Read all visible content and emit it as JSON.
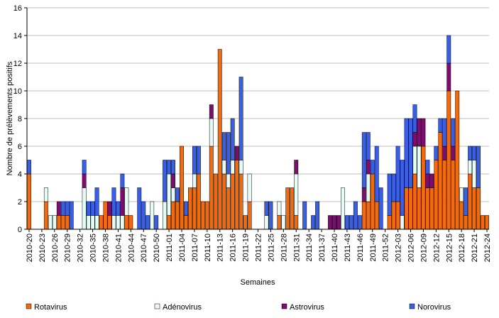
{
  "chart_data": {
    "type": "bar",
    "stacked": true,
    "y_label": "Nombre de prélèvements positifs",
    "x_label": "Semaines",
    "categories": [
      "2010-20",
      null,
      null,
      "2010-23",
      null,
      null,
      "2010-26",
      null,
      null,
      "2010-29",
      null,
      null,
      "2010-32",
      null,
      null,
      "2010-35",
      null,
      null,
      "2010-38",
      null,
      null,
      "2010-41",
      null,
      null,
      "2010-44",
      null,
      null,
      "2010-47",
      null,
      null,
      "2010-50",
      null,
      null,
      "2011-01",
      null,
      null,
      "2011-04",
      null,
      null,
      "2011-07",
      null,
      null,
      "2011-10",
      null,
      null,
      "2011-13",
      null,
      null,
      "2011-16",
      null,
      null,
      "2011-19",
      null,
      null,
      "2011-22",
      null,
      null,
      "2011-25",
      null,
      null,
      "2011-28",
      null,
      null,
      "2011-31",
      null,
      null,
      "2011-34",
      null,
      null,
      "2011-37",
      null,
      null,
      "2011-40",
      null,
      null,
      "2011-43",
      null,
      null,
      "2011-46",
      null,
      null,
      "2011-49",
      null,
      null,
      "2011-52",
      null,
      null,
      "2012-03",
      null,
      null,
      "2012-06",
      null,
      null,
      "2012-09",
      null,
      null,
      "2012-12",
      null,
      null,
      "2012-15",
      null,
      null,
      "2012-18",
      null,
      null,
      "2012-21",
      null,
      null,
      "2012-24"
    ],
    "series": [
      {
        "name": "Rotavirus",
        "color": "#f26a10",
        "values": [
          4,
          0,
          0,
          0,
          2,
          0,
          0,
          1,
          1,
          1,
          0,
          0,
          0,
          0,
          0,
          0,
          0,
          1,
          2,
          1,
          0,
          0,
          0,
          1,
          1,
          0,
          0,
          0,
          0,
          0,
          0,
          0,
          0,
          1,
          2,
          2,
          6,
          1,
          3,
          3,
          4,
          2,
          2,
          6,
          4,
          13,
          4,
          3,
          4,
          5,
          4,
          1,
          2,
          0,
          0,
          0,
          0,
          0,
          0,
          1,
          0,
          3,
          3,
          1,
          0,
          0,
          0,
          0,
          0,
          0,
          0,
          0,
          0,
          0,
          0,
          0,
          0,
          0,
          0,
          2,
          2,
          4,
          2,
          0,
          0,
          1,
          2,
          2,
          0,
          3,
          3,
          4,
          3,
          6,
          3,
          3,
          5,
          7,
          5,
          10,
          5,
          10,
          2,
          1,
          4,
          3,
          3,
          1,
          1
        ]
      },
      {
        "name": "Adénovirus",
        "color": "#e6fbf5",
        "values": [
          0,
          0,
          0,
          0,
          1,
          1,
          1,
          0,
          0,
          0,
          0,
          0,
          0,
          3,
          1,
          1,
          1,
          0,
          0,
          0,
          1,
          1,
          1,
          2,
          0,
          0,
          0,
          0,
          0,
          2,
          0,
          0,
          2,
          3,
          1,
          0,
          0,
          0,
          0,
          1,
          0,
          0,
          0,
          2,
          0,
          0,
          1,
          1,
          1,
          0,
          1,
          0,
          2,
          0,
          0,
          0,
          1,
          0,
          0,
          1,
          1,
          0,
          0,
          3,
          0,
          0,
          0,
          0,
          0,
          0,
          0,
          0,
          0,
          0,
          3,
          0,
          0,
          0,
          0,
          0,
          2,
          0,
          0,
          0,
          0,
          0,
          0,
          0,
          1,
          0,
          0,
          2,
          3,
          0,
          0,
          0,
          0,
          0,
          0,
          0,
          0,
          0,
          1,
          0,
          1,
          2,
          0,
          0,
          0
        ]
      },
      {
        "name": "Astrovirus",
        "color": "#7a0f6e",
        "values": [
          0,
          0,
          0,
          0,
          0,
          0,
          0,
          1,
          0,
          0,
          0,
          0,
          0,
          1,
          0,
          0,
          0,
          0,
          0,
          1,
          0,
          0,
          2,
          0,
          0,
          0,
          0,
          0,
          0,
          0,
          0,
          0,
          0,
          0,
          1,
          0,
          0,
          0,
          0,
          0,
          0,
          0,
          0,
          1,
          0,
          0,
          0,
          0,
          0,
          1,
          0,
          0,
          0,
          0,
          0,
          0,
          0,
          0,
          0,
          0,
          0,
          0,
          0,
          1,
          0,
          0,
          0,
          0,
          0,
          0,
          0,
          1,
          1,
          1,
          0,
          0,
          0,
          0,
          0,
          1,
          1,
          0,
          0,
          0,
          0,
          0,
          0,
          0,
          0,
          0,
          0,
          1,
          2,
          2,
          1,
          1,
          0,
          0,
          1,
          2,
          1,
          0,
          0,
          0,
          0,
          0,
          0,
          0,
          0
        ]
      },
      {
        "name": "Norovirus",
        "color": "#3a5fe0",
        "values": [
          1,
          0,
          0,
          0,
          0,
          0,
          0,
          0,
          1,
          1,
          2,
          0,
          0,
          1,
          1,
          1,
          2,
          0,
          0,
          0,
          2,
          1,
          1,
          0,
          0,
          0,
          3,
          2,
          1,
          0,
          1,
          0,
          3,
          1,
          1,
          1,
          0,
          1,
          0,
          2,
          2,
          0,
          0,
          0,
          0,
          0,
          2,
          3,
          3,
          0,
          6,
          0,
          0,
          0,
          0,
          0,
          1,
          2,
          0,
          0,
          0,
          0,
          0,
          0,
          0,
          2,
          0,
          1,
          2,
          0,
          0,
          0,
          0,
          0,
          0,
          1,
          1,
          2,
          1,
          4,
          2,
          1,
          4,
          3,
          0,
          3,
          2,
          4,
          4,
          5,
          5,
          2,
          0,
          0,
          1,
          0,
          1,
          1,
          2,
          2,
          2,
          0,
          0,
          2,
          1,
          1,
          3,
          0,
          0
        ]
      }
    ],
    "ylim": [
      0,
      16
    ],
    "yticks": [
      0,
      2,
      4,
      6,
      8,
      10,
      12,
      14,
      16
    ],
    "grid": true,
    "legend": "bottom"
  }
}
